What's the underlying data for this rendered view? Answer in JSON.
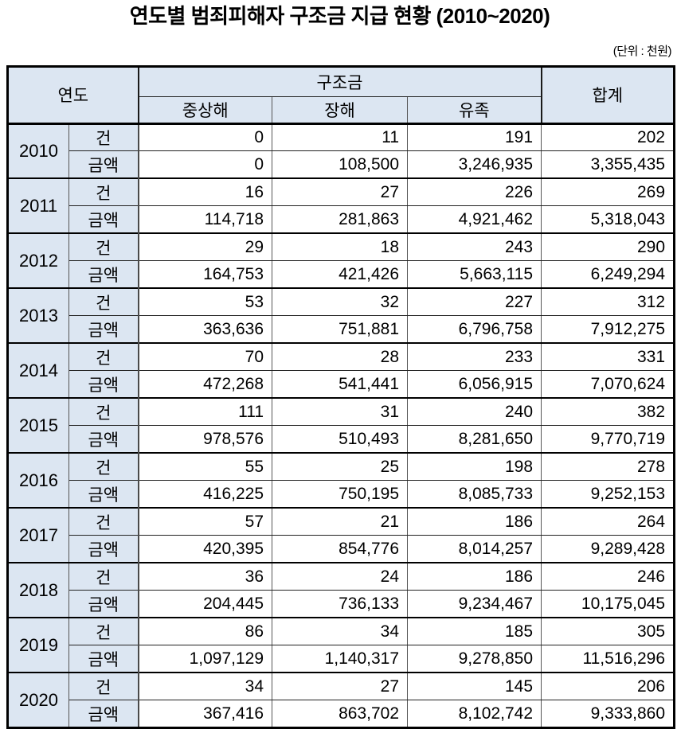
{
  "title": "연도별 범죄피해자 구조금 지급 현황 (2010~2020)",
  "unit_note": "(단위 : 천원)",
  "colors": {
    "header_bg": "#dce6f2",
    "outer_border": "#000000",
    "grid_line": "#555555",
    "text": "#000000"
  },
  "table": {
    "headers": {
      "year": "연도",
      "relief_fund": "구조금",
      "total": "합계",
      "sub": [
        "중상해",
        "장해",
        "유족"
      ]
    },
    "row_labels": {
      "count": "건",
      "amount": "금액"
    },
    "years": [
      {
        "year": "2010",
        "counts": [
          "0",
          "11",
          "191",
          "202"
        ],
        "amounts": [
          "0",
          "108,500",
          "3,246,935",
          "3,355,435"
        ]
      },
      {
        "year": "2011",
        "counts": [
          "16",
          "27",
          "226",
          "269"
        ],
        "amounts": [
          "114,718",
          "281,863",
          "4,921,462",
          "5,318,043"
        ]
      },
      {
        "year": "2012",
        "counts": [
          "29",
          "18",
          "243",
          "290"
        ],
        "amounts": [
          "164,753",
          "421,426",
          "5,663,115",
          "6,249,294"
        ]
      },
      {
        "year": "2013",
        "counts": [
          "53",
          "32",
          "227",
          "312"
        ],
        "amounts": [
          "363,636",
          "751,881",
          "6,796,758",
          "7,912,275"
        ]
      },
      {
        "year": "2014",
        "counts": [
          "70",
          "28",
          "233",
          "331"
        ],
        "amounts": [
          "472,268",
          "541,441",
          "6,056,915",
          "7,070,624"
        ]
      },
      {
        "year": "2015",
        "counts": [
          "111",
          "31",
          "240",
          "382"
        ],
        "amounts": [
          "978,576",
          "510,493",
          "8,281,650",
          "9,770,719"
        ]
      },
      {
        "year": "2016",
        "counts": [
          "55",
          "25",
          "198",
          "278"
        ],
        "amounts": [
          "416,225",
          "750,195",
          "8,085,733",
          "9,252,153"
        ]
      },
      {
        "year": "2017",
        "counts": [
          "57",
          "21",
          "186",
          "264"
        ],
        "amounts": [
          "420,395",
          "854,776",
          "8,014,257",
          "9,289,428"
        ]
      },
      {
        "year": "2018",
        "counts": [
          "36",
          "24",
          "186",
          "246"
        ],
        "amounts": [
          "204,445",
          "736,133",
          "9,234,467",
          "10,175,045"
        ]
      },
      {
        "year": "2019",
        "counts": [
          "86",
          "34",
          "185",
          "305"
        ],
        "amounts": [
          "1,097,129",
          "1,140,317",
          "9,278,850",
          "11,516,296"
        ]
      },
      {
        "year": "2020",
        "counts": [
          "34",
          "27",
          "145",
          "206"
        ],
        "amounts": [
          "367,416",
          "863,702",
          "8,102,742",
          "9,333,860"
        ]
      }
    ]
  }
}
